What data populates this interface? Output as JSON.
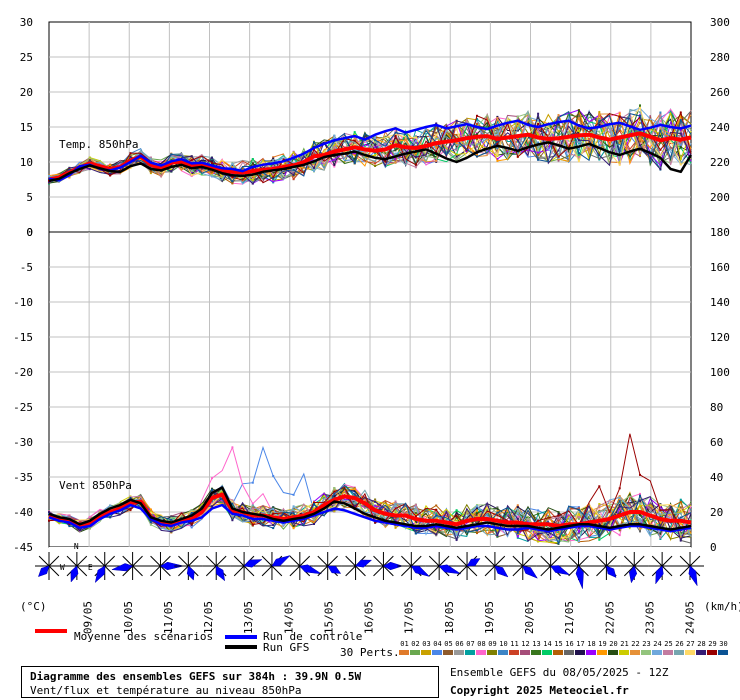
{
  "chart_data": [
    {
      "type": "line",
      "label": "Temp. 850hPa",
      "left_axis_ticks": [
        30,
        25,
        20,
        15,
        10,
        5,
        0
      ],
      "right_axis_ticks": [
        300,
        280,
        260,
        240,
        220,
        200
      ],
      "ylim": [
        0,
        30
      ],
      "x_labels": [
        "09/05",
        "10/05",
        "11/05",
        "12/05",
        "13/05",
        "14/05",
        "15/05",
        "16/05",
        "17/05",
        "18/05",
        "19/05",
        "20/05",
        "21/05",
        "22/05",
        "23/05",
        "24/05"
      ],
      "series": [
        {
          "name": "Moyenne des scénarios",
          "color": "#ff0000",
          "values": [
            7.5,
            7.8,
            8.5,
            9.2,
            9.8,
            9.4,
            9.0,
            9.3,
            10.2,
            10.8,
            9.6,
            9.1,
            9.9,
            10.1,
            9.4,
            9.6,
            9.2,
            8.8,
            8.6,
            8.5,
            8.7,
            8.9,
            9.0,
            9.3,
            9.5,
            10.0,
            10.8,
            11.0,
            11.5,
            11.8,
            12.1,
            11.8,
            11.6,
            11.8,
            12.4,
            12.1,
            12.0,
            12.3,
            12.7,
            12.9,
            13.1,
            13.4,
            13.6,
            13.7,
            13.3,
            13.5,
            13.7,
            13.9,
            13.5,
            13.3,
            13.4,
            13.6,
            13.8,
            13.9,
            13.5,
            13.2,
            13.5,
            13.8,
            14.1,
            13.6,
            13.1,
            13.4,
            13.2,
            13.5
          ]
        },
        {
          "name": "Run de contrôle",
          "color": "#0000ff",
          "values": [
            7.6,
            7.4,
            8.1,
            9.4,
            9.6,
            9.0,
            8.8,
            9.2,
            10.0,
            10.9,
            9.9,
            9.5,
            10.1,
            10.4,
            9.8,
            9.9,
            9.5,
            9.1,
            9.0,
            8.7,
            9.3,
            9.6,
            9.8,
            10.1,
            10.6,
            11.2,
            12.0,
            12.6,
            13.1,
            13.4,
            13.7,
            13.2,
            13.9,
            14.4,
            14.8,
            14.2,
            14.6,
            15.0,
            15.3,
            14.8,
            15.1,
            15.4,
            15.0,
            14.7,
            15.2,
            15.6,
            15.9,
            15.3,
            15.0,
            15.4,
            15.7,
            15.9,
            15.2,
            14.8,
            15.0,
            15.4,
            15.6,
            15.1,
            14.6,
            14.9,
            15.3,
            15.0,
            14.8,
            15.2
          ]
        },
        {
          "name": "Run GFS",
          "color": "#000000",
          "values": [
            7.3,
            7.6,
            8.4,
            9.0,
            9.5,
            9.1,
            8.7,
            8.6,
            9.4,
            9.8,
            9.0,
            8.8,
            9.3,
            9.6,
            9.1,
            9.3,
            8.9,
            8.4,
            8.1,
            8.0,
            8.2,
            8.6,
            8.8,
            9.0,
            9.3,
            9.6,
            10.1,
            10.7,
            11.0,
            11.2,
            11.5,
            11.0,
            10.6,
            10.4,
            10.8,
            11.2,
            11.5,
            11.8,
            11.2,
            10.5,
            10.0,
            10.6,
            11.4,
            11.9,
            12.3,
            12.0,
            11.6,
            12.1,
            12.5,
            12.8,
            12.4,
            11.9,
            12.2,
            12.6,
            12.0,
            11.4,
            11.0,
            11.5,
            11.9,
            11.3,
            10.6,
            9.0,
            8.6,
            11.0
          ]
        }
      ]
    },
    {
      "type": "line",
      "label": "Vent 850hPa",
      "left_axis_ticks": [
        0,
        -5,
        -10,
        -15,
        -20,
        -25,
        -30,
        -35,
        -40,
        -45
      ],
      "right_axis_ticks": [
        180,
        160,
        140,
        120,
        100,
        80,
        60,
        40,
        20,
        0
      ],
      "right_axis_unit": "(km/h)",
      "ylim": [
        0,
        180
      ],
      "x_labels": [
        "09/05",
        "10/05",
        "11/05",
        "12/05",
        "13/05",
        "14/05",
        "15/05",
        "16/05",
        "17/05",
        "18/05",
        "19/05",
        "20/05",
        "21/05",
        "22/05",
        "23/05",
        "24/05"
      ],
      "series": [
        {
          "name": "Moyenne des scénarios",
          "color": "#ff0000",
          "values": [
            18,
            16,
            15,
            12,
            14,
            18,
            20,
            22,
            25,
            26,
            17,
            14,
            13,
            15,
            16,
            20,
            28,
            30,
            21,
            20,
            18,
            18,
            17,
            16,
            17,
            18,
            20,
            24,
            27,
            29,
            28,
            25,
            21,
            19,
            18,
            18,
            16,
            15,
            15,
            14,
            13,
            15,
            16,
            16,
            15,
            14,
            14,
            13,
            13,
            13,
            12,
            13,
            13,
            14,
            15,
            16,
            18,
            20,
            20,
            18,
            16,
            15,
            15,
            14
          ]
        },
        {
          "name": "Run de contrôle",
          "color": "#0000ff",
          "values": [
            17,
            15,
            14,
            11,
            12,
            16,
            19,
            21,
            24,
            22,
            16,
            13,
            12,
            14,
            15,
            17,
            22,
            24,
            19,
            18,
            16,
            16,
            15,
            14,
            15,
            16,
            18,
            20,
            22,
            21,
            19,
            17,
            15,
            14,
            13,
            12,
            11,
            11,
            12,
            11,
            10,
            11,
            12,
            12,
            11,
            10,
            10,
            11,
            10,
            9,
            10,
            11,
            12,
            12,
            11,
            10,
            11,
            12,
            12,
            11,
            10,
            9,
            10,
            11
          ]
        },
        {
          "name": "Run GFS",
          "color": "#000000",
          "values": [
            19,
            17,
            16,
            13,
            15,
            19,
            22,
            24,
            27,
            25,
            17,
            15,
            14,
            16,
            18,
            22,
            31,
            34,
            22,
            20,
            19,
            18,
            16,
            15,
            16,
            17,
            19,
            22,
            26,
            25,
            22,
            19,
            17,
            15,
            14,
            13,
            12,
            12,
            13,
            12,
            11,
            12,
            13,
            14,
            13,
            12,
            12,
            12,
            11,
            10,
            11,
            12,
            13,
            13,
            12,
            11,
            12,
            13,
            13,
            12,
            11,
            10,
            11,
            12
          ]
        }
      ]
    }
  ],
  "axis_units": {
    "left": "(°C)",
    "right": "(km/h)"
  },
  "legend": {
    "mean_label": "Moyenne des scénarios",
    "control_label": "Run de contrôle",
    "gfs_label": "Run GFS",
    "perts_label": "30 Perts.",
    "pert_numbers": [
      "01",
      "02",
      "03",
      "04",
      "05",
      "06",
      "07",
      "08",
      "09",
      "10",
      "11",
      "12",
      "13",
      "14",
      "15",
      "16",
      "17",
      "18",
      "19",
      "20",
      "21",
      "22",
      "23",
      "24",
      "25",
      "26",
      "27",
      "28",
      "29",
      "30"
    ],
    "pert_colors": [
      "#e07a2a",
      "#6aa84f",
      "#c9a100",
      "#4a86e8",
      "#8e5a2b",
      "#999999",
      "#00a0a0",
      "#ff66cc",
      "#7f7f00",
      "#3d85c6",
      "#cc4125",
      "#a64d79",
      "#38761d",
      "#00cc66",
      "#b45f06",
      "#666666",
      "#20124d",
      "#9900ff",
      "#ff9900",
      "#274e13",
      "#cccc00",
      "#e69138",
      "#93c47d",
      "#6fa8dc",
      "#c27ba0",
      "#76a5af",
      "#ffd966",
      "#351c75",
      "#990000",
      "#0b5394"
    ]
  },
  "wind_roses": {
    "north_label": "N",
    "west_label": "W",
    "east_label": "E",
    "directions_deg": [
      225,
      200,
      210,
      260,
      90,
      160,
      150,
      70,
      60,
      110,
      120,
      70,
      90,
      120,
      110,
      60,
      130,
      130,
      115,
      170,
      140,
      190,
      200,
      160
    ]
  },
  "caption": {
    "title": "Diagramme des ensembles GEFS sur 384h : 39.9N 0.5W",
    "subtitle": "Vent/flux et température au niveau 850hPa"
  },
  "run_info": "Ensemble GEFS du 08/05/2025 - 12Z",
  "copyright": "Copyright 2025 Meteociel.fr"
}
